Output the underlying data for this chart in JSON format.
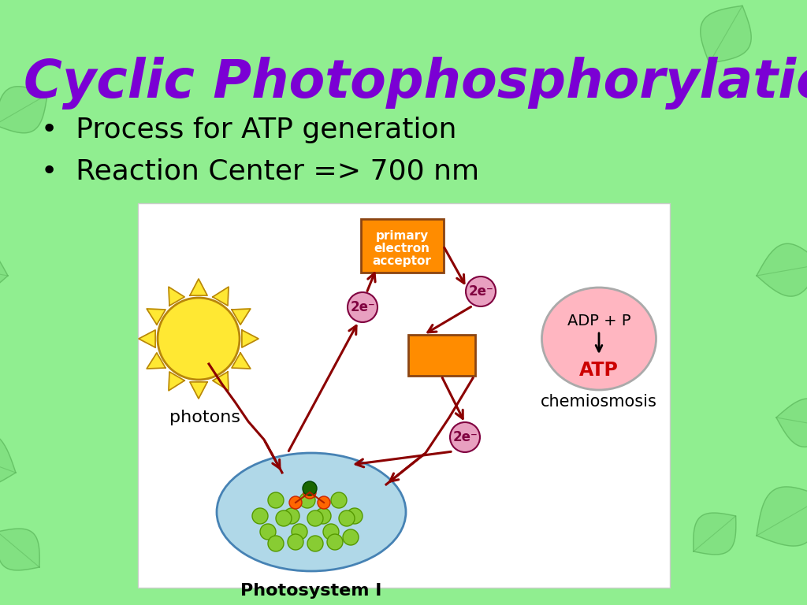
{
  "title": "Cyclic Photophosphorylation",
  "bullet1": "Process for ATP generation",
  "bullet2": "Reaction Center => 700 nm",
  "bg_color": "#90EE90",
  "title_color": "#7B00D4",
  "bullet_color": "#000000",
  "diagram_bg": "#FFFFFF",
  "arrow_color": "#8B0000",
  "sun_face_color": "#FFE833",
  "sun_edge_color": "#B8860B",
  "photosystem_fill": "#B0D8E8",
  "photosystem_edge": "#4682B4",
  "electron_circle_fill": "#E8A0C0",
  "electron_circle_edge": "#800040",
  "primary_acceptor_fill": "#FF8C00",
  "primary_acceptor_edge": "#8B4513",
  "carrier_fill": "#FF8C00",
  "carrier_edge": "#8B4513",
  "adp_atp_fill": "#FFB6C1",
  "adp_atp_edge": "#AAAAAA",
  "atp_text_color": "#CC0000",
  "chemiosmosis_color": "#000000",
  "photons_color": "#000000",
  "leaf_color": "#78D878",
  "leaf_edge": "#50AA50"
}
